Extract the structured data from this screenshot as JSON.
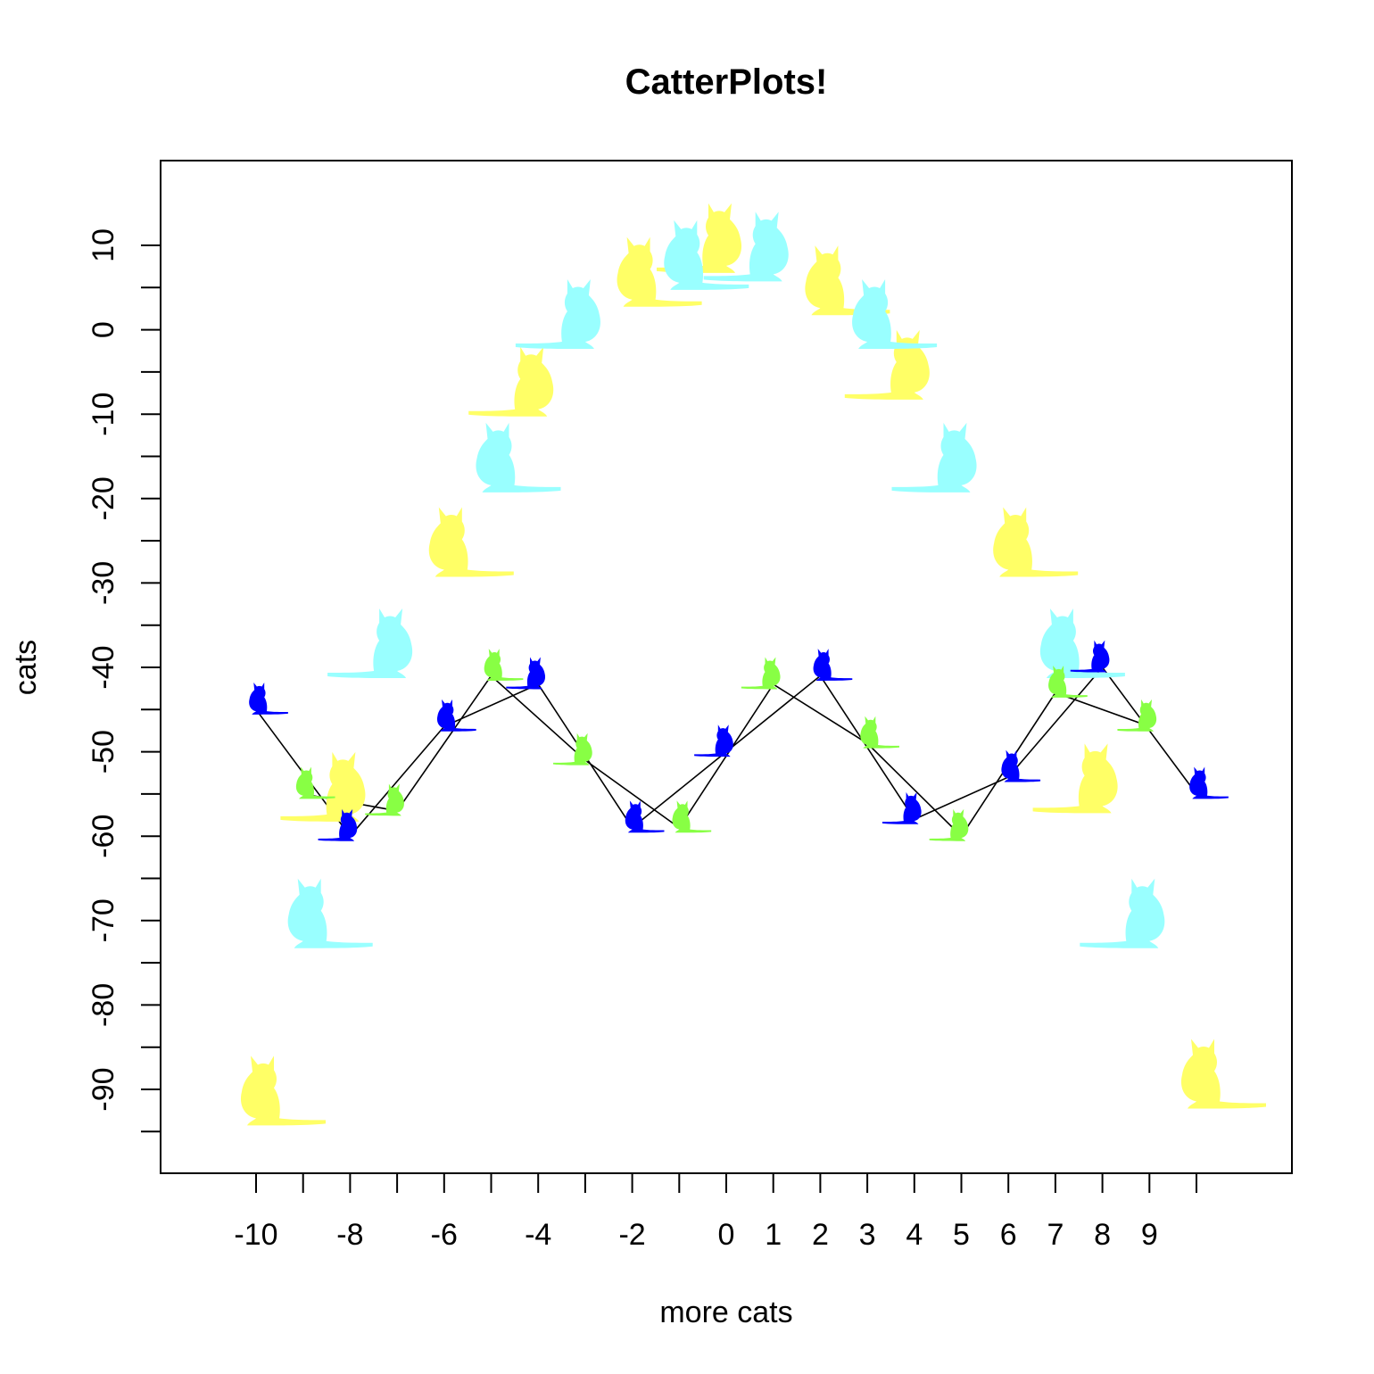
{
  "chart_data": {
    "type": "scatter",
    "title": "CatterPlots!",
    "xlabel": "more cats",
    "ylabel": "cats",
    "xlim": [
      -12,
      12
    ],
    "ylim": [
      -100,
      20
    ],
    "x_ticks": [
      -10,
      -9,
      -8,
      -7,
      -6,
      -5,
      -4,
      -3,
      -2,
      -1,
      0,
      1,
      2,
      3,
      4,
      5,
      6,
      7,
      8,
      9,
      10
    ],
    "x_tick_labels": [
      "-10",
      "",
      "-8",
      "",
      "-6",
      "",
      "-4",
      "",
      "-2",
      "",
      "0",
      "1",
      "2",
      "3",
      "4",
      "5",
      "6",
      "7",
      "8",
      "9",
      ""
    ],
    "y_ticks": [
      -95,
      -90,
      -85,
      -80,
      -75,
      -70,
      -65,
      -60,
      -55,
      -50,
      -45,
      -40,
      -35,
      -30,
      -25,
      -20,
      -15,
      -10,
      -5,
      0,
      5,
      10
    ],
    "y_tick_labels": [
      "",
      "-90",
      "",
      "-80",
      "",
      "-70",
      "",
      "-60",
      "",
      "-50",
      "",
      "-40",
      "",
      "-30",
      "",
      "-20",
      "",
      "-10",
      "",
      "0",
      "",
      "10"
    ],
    "grid": false,
    "legend": "none",
    "series": [
      {
        "marker": "cat",
        "line": false,
        "color": "#ffff66",
        "x": [
          -10,
          -8,
          -6,
          -4,
          -2,
          0,
          2,
          4,
          6,
          8,
          10
        ],
        "y": [
          -93,
          -57,
          -28,
          -9,
          4,
          8,
          3,
          -7,
          -28,
          -56,
          -91
        ]
      },
      {
        "marker": "cat",
        "line": false,
        "color": "#99ffff",
        "x": [
          -9,
          -7,
          -5,
          -3,
          -1,
          1,
          3,
          5,
          7,
          9
        ],
        "y": [
          -72,
          -40,
          -18,
          -1,
          6,
          7,
          -1,
          -18,
          -40,
          -72
        ]
      },
      {
        "marker": "cat",
        "line": true,
        "color": "#0000ff",
        "x": [
          -10,
          -8,
          -6,
          -4,
          -2,
          0,
          2,
          4,
          6,
          8,
          10
        ],
        "y": [
          -45,
          -60,
          -47,
          -42,
          -59,
          -50,
          -41,
          -58,
          -53,
          -40,
          -55
        ]
      },
      {
        "marker": "cat",
        "line": true,
        "color": "#88ff44",
        "x": [
          -9,
          -7,
          -5,
          -3,
          -1,
          1,
          3,
          5,
          7,
          9
        ],
        "y": [
          -55,
          -57,
          -41,
          -51,
          -59,
          -42,
          -49,
          -60,
          -43,
          -47
        ]
      }
    ]
  }
}
